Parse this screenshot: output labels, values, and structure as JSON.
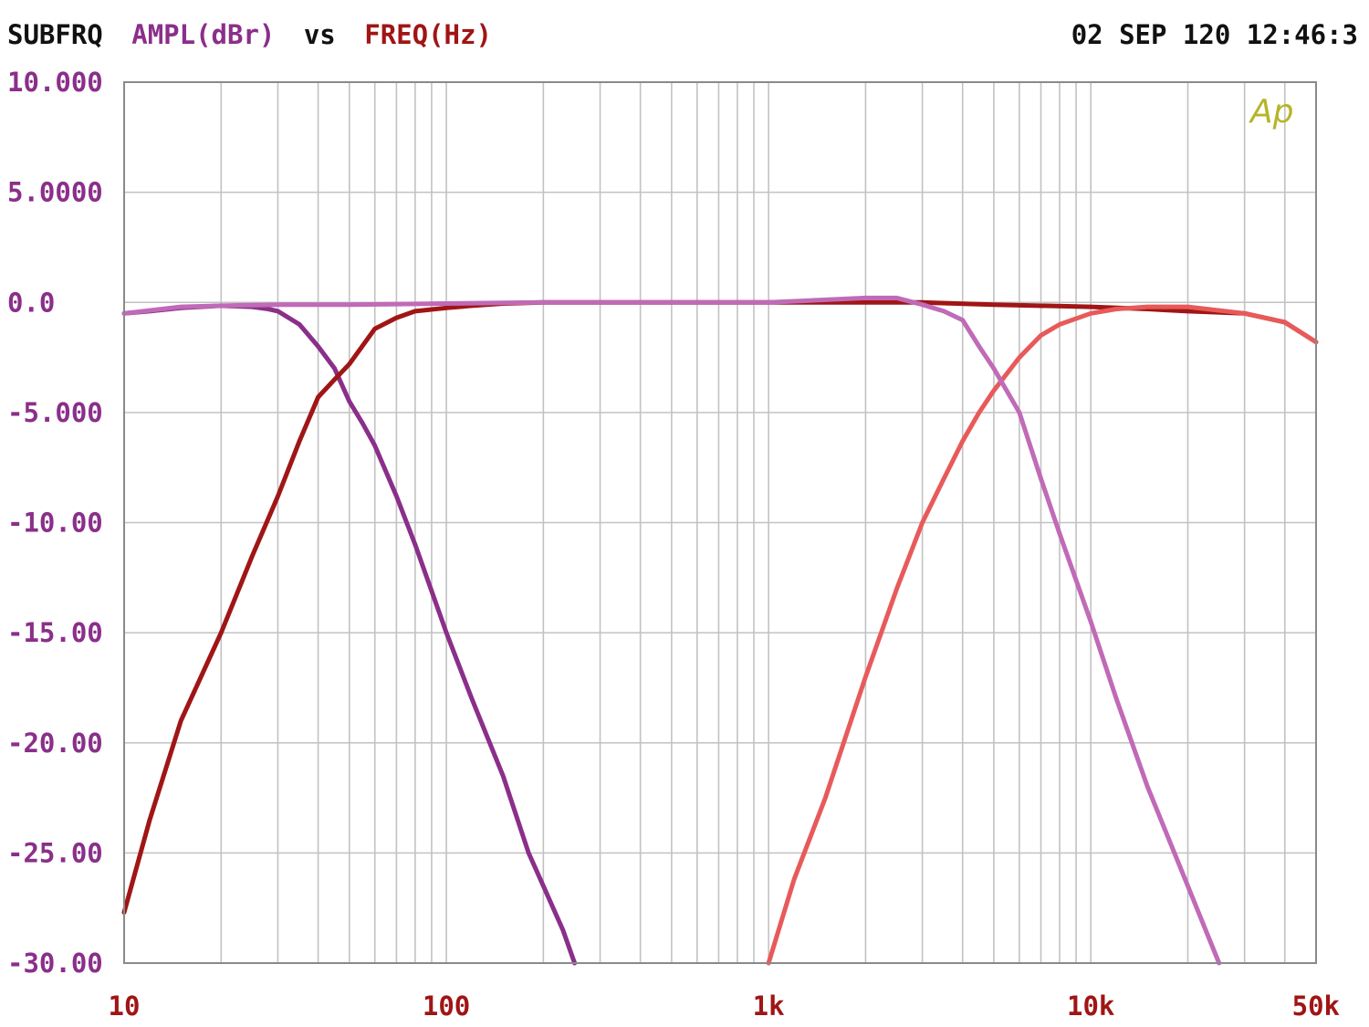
{
  "header": {
    "prefix": "SUBFRQ",
    "yquantity": "AMPL(dBr)",
    "vs": "vs",
    "xquantity": "FREQ(Hz)",
    "datetime": "02 SEP 120 12:46:3"
  },
  "logo": {
    "text": "Ap"
  },
  "colors": {
    "frame": "#8a8a8a",
    "grid": "#c2c2c2",
    "text_dark": "#111111",
    "text_y": "#8a2f8a",
    "text_x": "#a01515",
    "logo": "#b5b52a"
  },
  "chart_data": {
    "type": "line",
    "xscale": "log",
    "xlim": [
      10,
      50000
    ],
    "ylim": [
      -30,
      10
    ],
    "xlabel": "FREQ(Hz)",
    "ylabel": "AMPL(dBr)",
    "grid": true,
    "ytick_values": [
      10,
      5,
      0,
      -5,
      -10,
      -15,
      -20,
      -25,
      -30
    ],
    "ytick_labels": [
      "10.000",
      "5.0000",
      "0.0",
      "-5.000",
      "-10.00",
      "-15.00",
      "-20.00",
      "-25.00",
      "-30.00"
    ],
    "xtick_values": [
      10,
      100,
      1000,
      10000,
      50000
    ],
    "xtick_labels": [
      "10",
      "100",
      "1k",
      "10k",
      "50k"
    ],
    "series": [
      {
        "color": "#8a2f8a",
        "x": [
          10,
          12,
          15,
          20,
          25,
          28,
          30,
          35,
          40,
          45,
          50,
          55,
          60,
          70,
          80,
          100,
          120,
          150,
          180,
          200,
          230,
          250
        ],
        "y": [
          -0.5,
          -0.4,
          -0.25,
          -0.15,
          -0.2,
          -0.3,
          -0.4,
          -1.0,
          -2.0,
          -3.0,
          -4.5,
          -5.5,
          -6.5,
          -8.8,
          -11.0,
          -15.0,
          -18.0,
          -21.5,
          -25.0,
          -26.5,
          -28.5,
          -30.0
        ]
      },
      {
        "color": "#a01515",
        "x": [
          10,
          12,
          15,
          20,
          25,
          30,
          35,
          40,
          45,
          50,
          60,
          70,
          80,
          100,
          120,
          150,
          200,
          500,
          1000,
          2000,
          3000,
          5000,
          10000,
          15000,
          20000,
          30000,
          40000,
          50000
        ],
        "y": [
          -27.7,
          -23.5,
          -19.0,
          -15.0,
          -11.5,
          -8.8,
          -6.3,
          -4.3,
          -3.5,
          -2.8,
          -1.2,
          -0.7,
          -0.4,
          -0.25,
          -0.15,
          -0.05,
          0.0,
          0.0,
          0.0,
          0.0,
          0.0,
          -0.1,
          -0.2,
          -0.3,
          -0.4,
          -0.5,
          -0.9,
          -1.8
        ]
      },
      {
        "color": "#e85a5a",
        "x": [
          1000,
          1200,
          1500,
          2000,
          2500,
          3000,
          3500,
          4000,
          4500,
          5000,
          6000,
          7000,
          8000,
          10000,
          12000,
          15000,
          20000,
          30000,
          40000,
          50000
        ],
        "y": [
          -30.0,
          -26.2,
          -22.5,
          -17.0,
          -13.0,
          -10.0,
          -8.0,
          -6.3,
          -5.0,
          -4.0,
          -2.5,
          -1.5,
          -1.0,
          -0.5,
          -0.3,
          -0.2,
          -0.2,
          -0.5,
          -0.9,
          -1.8
        ]
      },
      {
        "color": "#c06ab8",
        "x": [
          10,
          15,
          20,
          30,
          50,
          100,
          200,
          1000,
          2000,
          2500,
          3000,
          3500,
          4000,
          4500,
          5000,
          6000,
          7000,
          8000,
          10000,
          12000,
          15000,
          20000,
          25000
        ],
        "y": [
          -0.5,
          -0.2,
          -0.15,
          -0.1,
          -0.1,
          -0.05,
          0.0,
          0.0,
          0.2,
          0.2,
          -0.1,
          -0.4,
          -0.8,
          -2.0,
          -3.0,
          -5.0,
          -8.0,
          -10.5,
          -14.5,
          -18.0,
          -22.0,
          -26.5,
          -30.0
        ]
      }
    ]
  }
}
